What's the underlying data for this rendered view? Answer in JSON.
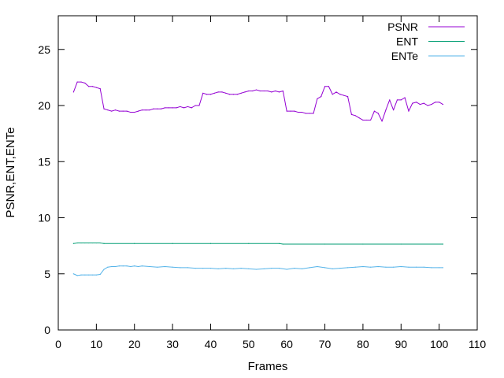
{
  "chart_data": {
    "type": "line",
    "title": "",
    "xlabel": "Frames",
    "ylabel": "PSNR,ENT,ENTe",
    "xlim": [
      0,
      110
    ],
    "ylim": [
      0,
      28
    ],
    "xticks": [
      0,
      10,
      20,
      30,
      40,
      50,
      60,
      70,
      80,
      90,
      100,
      110
    ],
    "yticks": [
      0,
      5,
      10,
      15,
      20,
      25
    ],
    "grid": false,
    "legend_position": "top-right",
    "series": [
      {
        "name": "PSNR",
        "color": "#9400d3",
        "points": [
          [
            4,
            21.2
          ],
          [
            5,
            22.1
          ],
          [
            6,
            22.1
          ],
          [
            7,
            22.0
          ],
          [
            8,
            21.7
          ],
          [
            9,
            21.7
          ],
          [
            10,
            21.6
          ],
          [
            11,
            21.5
          ],
          [
            12,
            19.7
          ],
          [
            13,
            19.6
          ],
          [
            14,
            19.5
          ],
          [
            15,
            19.6
          ],
          [
            16,
            19.5
          ],
          [
            17,
            19.5
          ],
          [
            18,
            19.5
          ],
          [
            19,
            19.4
          ],
          [
            20,
            19.4
          ],
          [
            21,
            19.5
          ],
          [
            22,
            19.6
          ],
          [
            23,
            19.6
          ],
          [
            24,
            19.6
          ],
          [
            25,
            19.7
          ],
          [
            26,
            19.7
          ],
          [
            27,
            19.7
          ],
          [
            28,
            19.8
          ],
          [
            29,
            19.8
          ],
          [
            30,
            19.8
          ],
          [
            31,
            19.8
          ],
          [
            32,
            19.9
          ],
          [
            33,
            19.8
          ],
          [
            34,
            19.9
          ],
          [
            35,
            19.8
          ],
          [
            36,
            20.0
          ],
          [
            37,
            20.0
          ],
          [
            38,
            21.1
          ],
          [
            39,
            21.0
          ],
          [
            40,
            21.0
          ],
          [
            41,
            21.1
          ],
          [
            42,
            21.2
          ],
          [
            43,
            21.2
          ],
          [
            44,
            21.1
          ],
          [
            45,
            21.0
          ],
          [
            46,
            21.0
          ],
          [
            47,
            21.0
          ],
          [
            48,
            21.1
          ],
          [
            49,
            21.2
          ],
          [
            50,
            21.3
          ],
          [
            51,
            21.3
          ],
          [
            52,
            21.4
          ],
          [
            53,
            21.3
          ],
          [
            54,
            21.3
          ],
          [
            55,
            21.3
          ],
          [
            56,
            21.2
          ],
          [
            57,
            21.3
          ],
          [
            58,
            21.2
          ],
          [
            59,
            21.3
          ],
          [
            60,
            19.5
          ],
          [
            61,
            19.5
          ],
          [
            62,
            19.5
          ],
          [
            63,
            19.4
          ],
          [
            64,
            19.4
          ],
          [
            65,
            19.3
          ],
          [
            66,
            19.3
          ],
          [
            67,
            19.3
          ],
          [
            68,
            20.6
          ],
          [
            69,
            20.8
          ],
          [
            70,
            21.7
          ],
          [
            71,
            21.7
          ],
          [
            72,
            21.0
          ],
          [
            73,
            21.2
          ],
          [
            74,
            21.0
          ],
          [
            75,
            20.9
          ],
          [
            76,
            20.8
          ],
          [
            77,
            19.2
          ],
          [
            78,
            19.1
          ],
          [
            79,
            18.9
          ],
          [
            80,
            18.7
          ],
          [
            81,
            18.7
          ],
          [
            82,
            18.7
          ],
          [
            83,
            19.5
          ],
          [
            84,
            19.3
          ],
          [
            85,
            18.6
          ],
          [
            86,
            19.6
          ],
          [
            87,
            20.5
          ],
          [
            88,
            19.6
          ],
          [
            89,
            20.5
          ],
          [
            90,
            20.5
          ],
          [
            91,
            20.7
          ],
          [
            92,
            19.5
          ],
          [
            93,
            20.2
          ],
          [
            94,
            20.3
          ],
          [
            95,
            20.1
          ],
          [
            96,
            20.2
          ],
          [
            97,
            20.0
          ],
          [
            98,
            20.1
          ],
          [
            99,
            20.3
          ],
          [
            100,
            20.3
          ],
          [
            101,
            20.1
          ]
        ]
      },
      {
        "name": "ENT",
        "color": "#009e73",
        "points": [
          [
            4,
            7.7
          ],
          [
            5,
            7.75
          ],
          [
            6,
            7.75
          ],
          [
            7,
            7.75
          ],
          [
            8,
            7.75
          ],
          [
            9,
            7.75
          ],
          [
            10,
            7.75
          ],
          [
            11,
            7.75
          ],
          [
            12,
            7.7
          ],
          [
            20,
            7.7
          ],
          [
            30,
            7.7
          ],
          [
            40,
            7.7
          ],
          [
            50,
            7.7
          ],
          [
            58,
            7.7
          ],
          [
            59,
            7.65
          ],
          [
            70,
            7.65
          ],
          [
            80,
            7.65
          ],
          [
            90,
            7.65
          ],
          [
            101,
            7.65
          ]
        ]
      },
      {
        "name": "ENTe",
        "color": "#56b4e9",
        "points": [
          [
            4,
            5.0
          ],
          [
            5,
            4.85
          ],
          [
            6,
            4.9
          ],
          [
            7,
            4.9
          ],
          [
            8,
            4.9
          ],
          [
            9,
            4.9
          ],
          [
            10,
            4.9
          ],
          [
            11,
            4.95
          ],
          [
            12,
            5.4
          ],
          [
            13,
            5.6
          ],
          [
            14,
            5.65
          ],
          [
            15,
            5.65
          ],
          [
            16,
            5.7
          ],
          [
            17,
            5.7
          ],
          [
            18,
            5.7
          ],
          [
            19,
            5.65
          ],
          [
            20,
            5.7
          ],
          [
            21,
            5.65
          ],
          [
            22,
            5.7
          ],
          [
            24,
            5.65
          ],
          [
            26,
            5.6
          ],
          [
            28,
            5.65
          ],
          [
            30,
            5.6
          ],
          [
            32,
            5.55
          ],
          [
            34,
            5.55
          ],
          [
            36,
            5.5
          ],
          [
            38,
            5.5
          ],
          [
            40,
            5.5
          ],
          [
            42,
            5.45
          ],
          [
            44,
            5.5
          ],
          [
            46,
            5.45
          ],
          [
            48,
            5.5
          ],
          [
            50,
            5.45
          ],
          [
            52,
            5.4
          ],
          [
            54,
            5.45
          ],
          [
            56,
            5.5
          ],
          [
            58,
            5.5
          ],
          [
            60,
            5.4
          ],
          [
            62,
            5.5
          ],
          [
            64,
            5.45
          ],
          [
            66,
            5.55
          ],
          [
            68,
            5.65
          ],
          [
            70,
            5.55
          ],
          [
            72,
            5.45
          ],
          [
            74,
            5.5
          ],
          [
            76,
            5.55
          ],
          [
            78,
            5.6
          ],
          [
            80,
            5.65
          ],
          [
            82,
            5.6
          ],
          [
            84,
            5.65
          ],
          [
            86,
            5.6
          ],
          [
            88,
            5.6
          ],
          [
            90,
            5.65
          ],
          [
            92,
            5.6
          ],
          [
            94,
            5.6
          ],
          [
            96,
            5.6
          ],
          [
            98,
            5.55
          ],
          [
            100,
            5.55
          ],
          [
            101,
            5.55
          ]
        ]
      }
    ]
  }
}
